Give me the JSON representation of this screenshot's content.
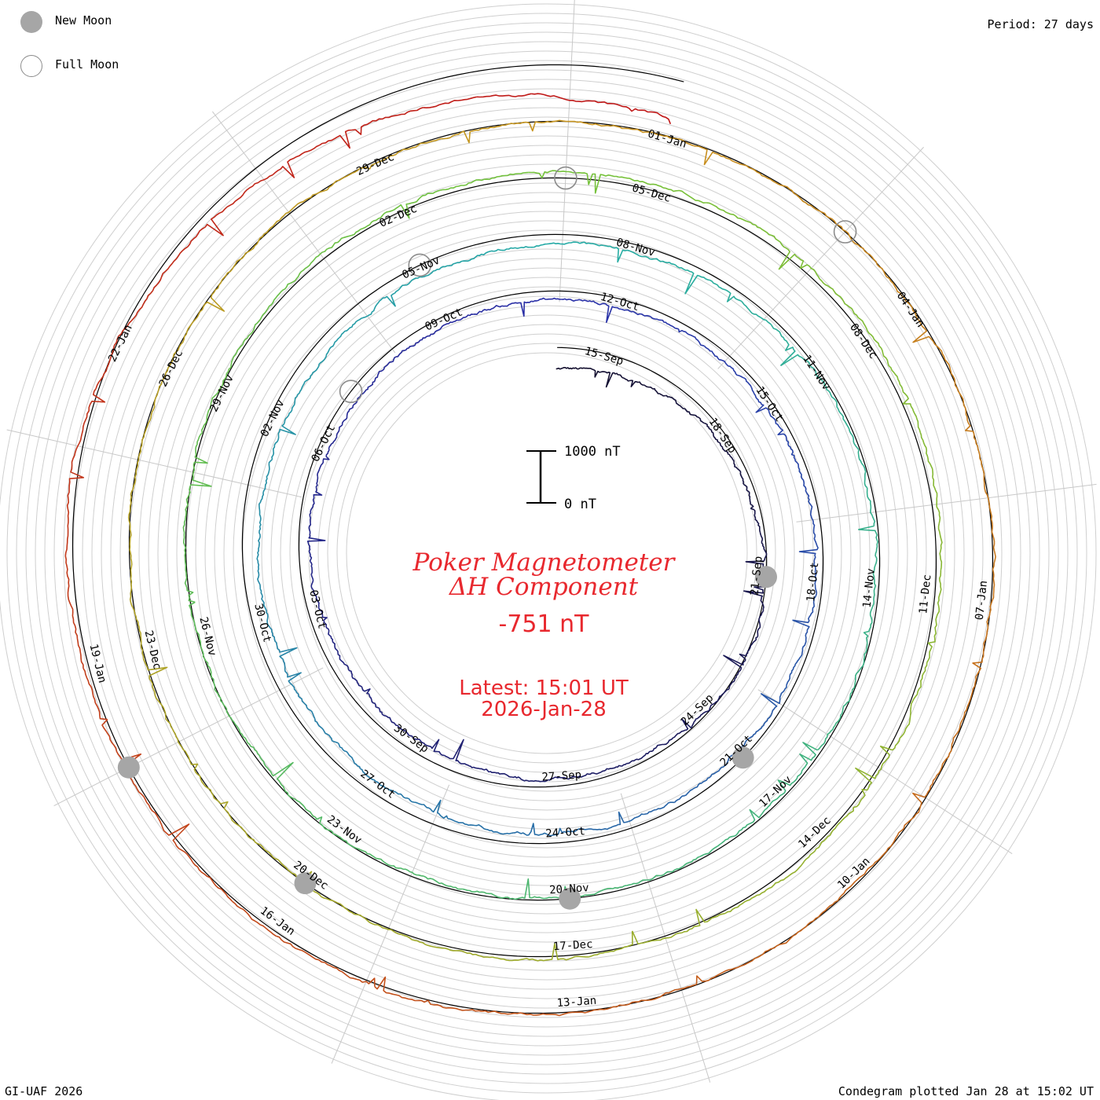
{
  "legend": {
    "new_moon_label": "New Moon",
    "full_moon_label": "Full Moon",
    "new_moon_color": "#a6a6a6",
    "full_moon_color": "#8c8c8c"
  },
  "period_label": "Period: 27 days",
  "footer_left": "GI-UAF 2026",
  "footer_right": "Condegram plotted Jan 28 at 15:02 UT",
  "center": {
    "title_line1": "Poker Magnetometer",
    "title_line2": "ΔH Component",
    "current_value": "-751 nT",
    "latest_line1": "Latest: 15:01 UT",
    "latest_line2": "2026-Jan-28",
    "text_color": "#e8282e"
  },
  "scale_bar": {
    "top_label": "1000 nT",
    "bottom_label": "0 nT"
  },
  "chart_data": {
    "type": "line",
    "title": "Poker Magnetometer ΔH Component",
    "period_days": 27,
    "unit": "nT",
    "grid": true,
    "rings": [
      {
        "start": "2025-Sep-14",
        "color": "#14102e",
        "date_labels": [
          "15-Sep",
          "18-Sep",
          "21-Sep",
          "24-Sep",
          "27-Sep",
          "30-Sep",
          "03-Oct",
          "06-Oct",
          "09-Oct"
        ]
      },
      {
        "start": "2025-Oct-11",
        "color": "#2a2fa8",
        "date_labels": [
          "12-Oct",
          "15-Oct",
          "18-Oct",
          "21-Oct",
          "24-Oct",
          "27-Oct",
          "30-Oct",
          "02-Nov",
          "05-Nov"
        ]
      },
      {
        "start": "2025-Nov-07",
        "color": "#25aba6",
        "date_labels": [
          "08-Nov",
          "11-Nov",
          "14-Nov",
          "17-Nov",
          "20-Nov",
          "23-Nov",
          "26-Nov",
          "29-Nov",
          "02-Dec"
        ]
      },
      {
        "start": "2025-Dec-04",
        "color": "#74c23a",
        "date_labels": [
          "05-Dec",
          "08-Dec",
          "11-Dec",
          "14-Dec",
          "17-Dec",
          "20-Dec",
          "23-Dec",
          "26-Dec",
          "29-Dec"
        ]
      },
      {
        "start": "2025-Dec-31",
        "color": "#c8951f",
        "date_labels": [
          "01-Jan",
          "04-Jan",
          "07-Jan",
          "10-Jan",
          "13-Jan",
          "16-Jan",
          "19-Jan",
          "22-Jan"
        ]
      }
    ],
    "last_trace_color": "#c01818",
    "trend_points": [
      {
        "date": "2025-Sep-14",
        "dH": -420
      },
      {
        "date": "2025-Sep-22",
        "dH": 40
      },
      {
        "date": "2025-Sep-30",
        "dH": -250
      },
      {
        "date": "2025-Oct-08",
        "dH": -180
      },
      {
        "date": "2025-Oct-20",
        "dH": -120
      },
      {
        "date": "2025-Nov-01",
        "dH": -330
      },
      {
        "date": "2025-Nov-12",
        "dH": -60
      },
      {
        "date": "2025-Nov-24",
        "dH": -40
      },
      {
        "date": "2025-Dec-05",
        "dH": 150
      },
      {
        "date": "2025-Dec-20",
        "dH": 20
      },
      {
        "date": "2026-Jan-01",
        "dH": -20
      },
      {
        "date": "2026-Jan-12",
        "dH": 0
      },
      {
        "date": "2026-Jan-21",
        "dH": 120
      },
      {
        "date": "2026-Jan-28",
        "dH": -751
      }
    ],
    "new_moons": [
      "2025-Sep-21",
      "2025-Oct-21",
      "2025-Nov-20",
      "2025-Dec-20",
      "2026-Jan-18"
    ],
    "full_moons": [
      "2025-Oct-07",
      "2025-Nov-05",
      "2025-Dec-04",
      "2026-Jan-03"
    ]
  }
}
